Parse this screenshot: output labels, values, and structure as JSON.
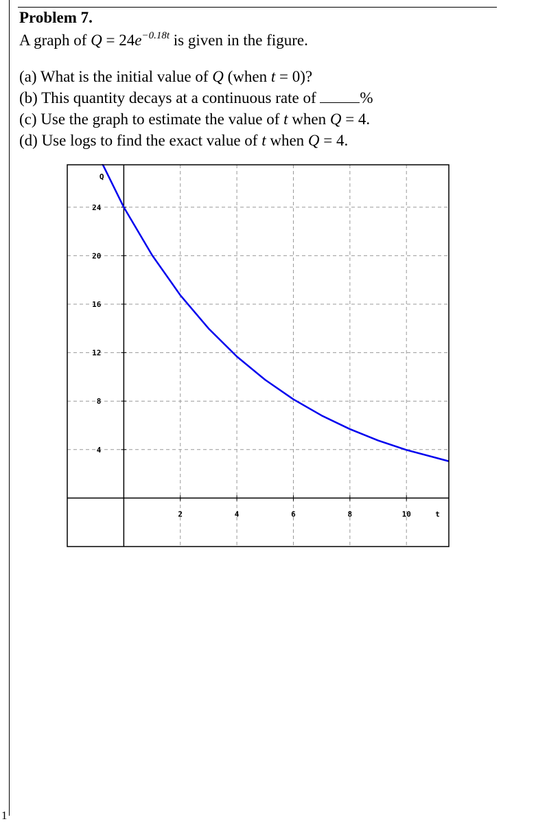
{
  "page_number": "1",
  "problem": {
    "title": "Problem 7.",
    "intro": {
      "prefix": "A graph of ",
      "var_q": "Q",
      "equals": " = 24",
      "var_e": "e",
      "exponent": "−0.18t",
      "suffix": " is given in the figure."
    },
    "questions": {
      "a": {
        "prefix": "(a) What is the initial value of ",
        "var1": "Q",
        "mid": " (when ",
        "var2": "t",
        "suffix": " = 0)?"
      },
      "b": {
        "prefix": "(b) This quantity decays at a continuous rate of ",
        "suffix": "%"
      },
      "c": {
        "prefix": "(c) Use the graph to estimate the value of ",
        "var1": "t",
        "mid": " when ",
        "var2": "Q",
        "suffix": " = 4."
      },
      "d": {
        "prefix": "(d) Use logs to find the exact value of ",
        "var1": "t",
        "mid": " when ",
        "var2": "Q",
        "suffix": " = 4."
      }
    }
  },
  "chart_data": {
    "type": "line",
    "function": "Q = 24e^(-0.18t)",
    "series": [
      {
        "x": [
          -1,
          0,
          1,
          2,
          3,
          4,
          5,
          6,
          7,
          8,
          9,
          10,
          11.5
        ],
        "y": [
          28.73,
          24,
          20.05,
          16.74,
          13.99,
          11.68,
          9.76,
          8.15,
          6.81,
          5.69,
          4.75,
          3.97,
          3.04
        ]
      }
    ],
    "xlabel": "t",
    "ylabel": "Q",
    "x_ticks": [
      "2",
      "4",
      "6",
      "8",
      "10"
    ],
    "x_tick_values": [
      2,
      4,
      6,
      8,
      10
    ],
    "y_ticks": [
      "24",
      "20",
      "16",
      "12",
      "8",
      "4"
    ],
    "y_tick_values": [
      24,
      20,
      16,
      12,
      8,
      4
    ],
    "xlim": [
      -2,
      11.5
    ],
    "ylim": [
      -4,
      27.5
    ],
    "grid": true,
    "colors": {
      "curve": "#0000ee",
      "grid": "#999999",
      "axis": "#000000"
    }
  }
}
